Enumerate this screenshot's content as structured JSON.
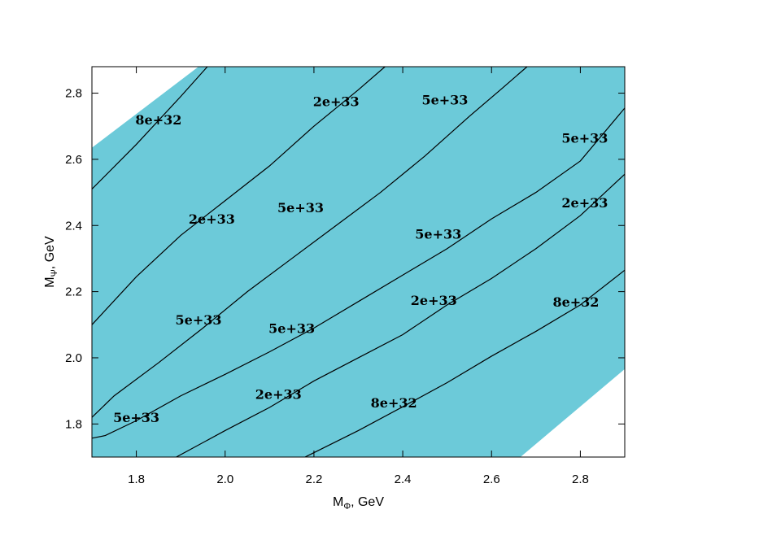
{
  "chart_data": {
    "type": "contour",
    "title": "",
    "xlabel": {
      "main": "M",
      "sub": "Φ",
      "suffix": ", GeV"
    },
    "ylabel": {
      "main": "M",
      "sub": "Ψ",
      "suffix": ", GeV"
    },
    "xlim": [
      1.7,
      2.9
    ],
    "ylim": [
      1.7,
      2.88
    ],
    "xticks": [
      1.8,
      2.0,
      2.2,
      2.4,
      2.6,
      2.8
    ],
    "xtick_labels": [
      "1.8",
      "2.0",
      "2.2",
      "2.4",
      "2.6",
      "2.8"
    ],
    "yticks": [
      1.8,
      2.0,
      2.2,
      2.4,
      2.6,
      2.8
    ],
    "ytick_labels": [
      "1.8",
      "2.0",
      "2.2",
      "2.4",
      "2.6",
      "2.8"
    ],
    "grid": false,
    "fill_color": "#6ccad9",
    "line_color": "#000000",
    "allowed_region": [
      [
        1.7,
        1.7
      ],
      [
        2.665,
        1.7
      ],
      [
        2.9,
        1.966
      ],
      [
        2.9,
        2.88
      ],
      [
        1.94,
        2.88
      ],
      [
        1.7,
        2.635
      ]
    ],
    "contours": [
      {
        "level": "8e+32",
        "points": [
          [
            1.7,
            2.51
          ],
          [
            1.8,
            2.645
          ],
          [
            1.9,
            2.79
          ],
          [
            1.96,
            2.88
          ]
        ]
      },
      {
        "level": "2e+33",
        "points": [
          [
            1.7,
            2.1
          ],
          [
            1.8,
            2.245
          ],
          [
            1.9,
            2.37
          ],
          [
            2.0,
            2.475
          ],
          [
            2.1,
            2.58
          ],
          [
            2.2,
            2.7
          ],
          [
            2.3,
            2.81
          ],
          [
            2.36,
            2.88
          ]
        ]
      },
      {
        "level": "5e+33",
        "points": [
          [
            1.7,
            1.82
          ],
          [
            1.75,
            1.885
          ],
          [
            1.85,
            1.985
          ],
          [
            1.95,
            2.09
          ],
          [
            2.05,
            2.2
          ],
          [
            2.15,
            2.3
          ],
          [
            2.25,
            2.4
          ],
          [
            2.35,
            2.5
          ],
          [
            2.45,
            2.61
          ],
          [
            2.55,
            2.73
          ],
          [
            2.62,
            2.81
          ],
          [
            2.68,
            2.88
          ]
        ]
      },
      {
        "level": "5e+33",
        "points": [
          [
            1.7,
            1.757
          ],
          [
            1.73,
            1.765
          ],
          [
            1.8,
            1.81
          ],
          [
            1.9,
            1.885
          ],
          [
            2.0,
            1.95
          ],
          [
            2.1,
            2.018
          ],
          [
            2.2,
            2.09
          ],
          [
            2.3,
            2.17
          ],
          [
            2.4,
            2.25
          ],
          [
            2.5,
            2.33
          ],
          [
            2.6,
            2.42
          ],
          [
            2.7,
            2.5
          ],
          [
            2.8,
            2.595
          ],
          [
            2.9,
            2.755
          ]
        ]
      },
      {
        "level": "2e+33",
        "points": [
          [
            1.89,
            1.7
          ],
          [
            2.0,
            1.78
          ],
          [
            2.1,
            1.85
          ],
          [
            2.2,
            1.93
          ],
          [
            2.3,
            2.0
          ],
          [
            2.4,
            2.07
          ],
          [
            2.5,
            2.16
          ],
          [
            2.6,
            2.24
          ],
          [
            2.7,
            2.33
          ],
          [
            2.8,
            2.43
          ],
          [
            2.9,
            2.555
          ]
        ]
      },
      {
        "level": "8e+32",
        "points": [
          [
            2.18,
            1.7
          ],
          [
            2.3,
            1.78
          ],
          [
            2.4,
            1.852
          ],
          [
            2.5,
            1.925
          ],
          [
            2.6,
            2.005
          ],
          [
            2.7,
            2.08
          ],
          [
            2.8,
            2.16
          ],
          [
            2.9,
            2.265
          ]
        ]
      }
    ],
    "contour_labels": [
      {
        "text": "8e+32",
        "x": 1.85,
        "y": 2.72
      },
      {
        "text": "2e+33",
        "x": 2.25,
        "y": 2.775
      },
      {
        "text": "5e+33",
        "x": 2.495,
        "y": 2.78
      },
      {
        "text": "5e+33",
        "x": 2.81,
        "y": 2.665
      },
      {
        "text": "2e+33",
        "x": 1.97,
        "y": 2.42
      },
      {
        "text": "5e+33",
        "x": 2.17,
        "y": 2.455
      },
      {
        "text": "5e+33",
        "x": 2.48,
        "y": 2.375
      },
      {
        "text": "2e+33",
        "x": 2.81,
        "y": 2.47
      },
      {
        "text": "5e+33",
        "x": 1.94,
        "y": 2.115
      },
      {
        "text": "5e+33",
        "x": 2.15,
        "y": 2.09
      },
      {
        "text": "2e+33",
        "x": 2.47,
        "y": 2.175
      },
      {
        "text": "8e+32",
        "x": 2.79,
        "y": 2.17
      },
      {
        "text": "5e+33",
        "x": 1.8,
        "y": 1.82
      },
      {
        "text": "2e+33",
        "x": 2.12,
        "y": 1.89
      },
      {
        "text": "8e+32",
        "x": 2.38,
        "y": 1.865
      }
    ]
  }
}
